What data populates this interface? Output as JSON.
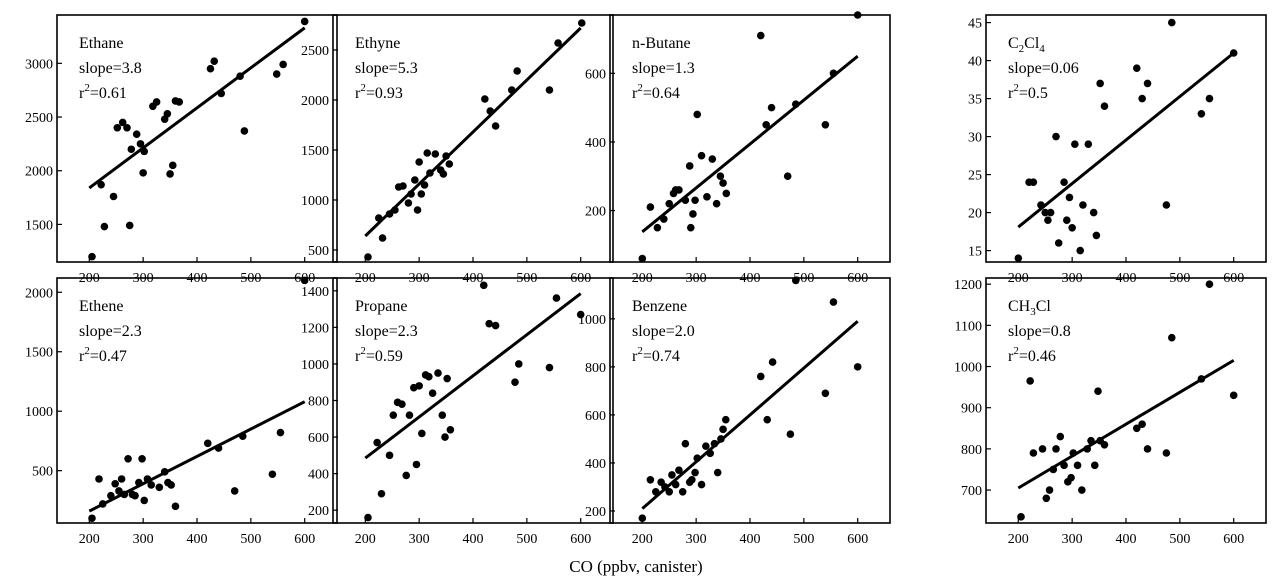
{
  "figure": {
    "xlabel": "CO (ppbv, canister)"
  },
  "chart_data": [
    {
      "type": "scatter",
      "species_main": "Ethane",
      "species_sub": "",
      "slope_label": "slope=3.8",
      "r2_label": "r",
      "r2_sup": "2",
      "r2_value": "=0.61",
      "xlim": [
        140,
        660
      ],
      "ylim": [
        1150,
        3450
      ],
      "xticks": [
        200,
        300,
        400,
        500,
        600
      ],
      "yticks": [
        1500,
        2000,
        2500,
        3000
      ],
      "fit": [
        [
          200,
          1840
        ],
        [
          600,
          3330
        ]
      ],
      "points": [
        [
          205,
          1200
        ],
        [
          222,
          1870
        ],
        [
          228,
          1480
        ],
        [
          245,
          1760
        ],
        [
          252,
          2400
        ],
        [
          262,
          2450
        ],
        [
          270,
          2400
        ],
        [
          275,
          1490
        ],
        [
          278,
          2200
        ],
        [
          288,
          2340
        ],
        [
          295,
          2250
        ],
        [
          300,
          1980
        ],
        [
          302,
          2180
        ],
        [
          318,
          2600
        ],
        [
          325,
          2640
        ],
        [
          340,
          2480
        ],
        [
          345,
          2530
        ],
        [
          350,
          1970
        ],
        [
          355,
          2050
        ],
        [
          360,
          2650
        ],
        [
          367,
          2640
        ],
        [
          425,
          2950
        ],
        [
          432,
          3020
        ],
        [
          445,
          2720
        ],
        [
          480,
          2880
        ],
        [
          488,
          2370
        ],
        [
          548,
          2900
        ],
        [
          560,
          2990
        ],
        [
          600,
          3390
        ]
      ]
    },
    {
      "type": "scatter",
      "species_main": "Ethyne",
      "species_sub": "",
      "slope_label": "slope=5.3",
      "r2_label": "r",
      "r2_sup": "2",
      "r2_value": "=0.93",
      "xlim": [
        140,
        660
      ],
      "ylim": [
        380,
        2850
      ],
      "xticks": [
        200,
        300,
        400,
        500,
        600
      ],
      "yticks": [
        500,
        1000,
        1500,
        2000,
        2500
      ],
      "fit": [
        [
          200,
          640
        ],
        [
          600,
          2720
        ]
      ],
      "points": [
        [
          205,
          430
        ],
        [
          225,
          820
        ],
        [
          232,
          620
        ],
        [
          245,
          860
        ],
        [
          255,
          900
        ],
        [
          262,
          1130
        ],
        [
          270,
          1140
        ],
        [
          280,
          970
        ],
        [
          285,
          1060
        ],
        [
          292,
          1200
        ],
        [
          297,
          900
        ],
        [
          300,
          1380
        ],
        [
          304,
          1060
        ],
        [
          310,
          1150
        ],
        [
          315,
          1470
        ],
        [
          320,
          1270
        ],
        [
          330,
          1460
        ],
        [
          340,
          1300
        ],
        [
          345,
          1260
        ],
        [
          350,
          1440
        ],
        [
          356,
          1360
        ],
        [
          422,
          2010
        ],
        [
          432,
          1890
        ],
        [
          442,
          1740
        ],
        [
          472,
          2100
        ],
        [
          482,
          2290
        ],
        [
          542,
          2100
        ],
        [
          558,
          2570
        ],
        [
          602,
          2770
        ]
      ]
    },
    {
      "type": "scatter",
      "species_main": "n-Butane",
      "species_sub": "",
      "slope_label": "slope=1.3",
      "r2_label": "r",
      "r2_sup": "2",
      "r2_value": "=0.64",
      "xlim": [
        140,
        660
      ],
      "ylim": [
        50,
        770
      ],
      "xticks": [
        200,
        300,
        400,
        500,
        600
      ],
      "yticks": [
        200,
        400,
        600
      ],
      "fit": [
        [
          200,
          138
        ],
        [
          600,
          650
        ]
      ],
      "points": [
        [
          200,
          60
        ],
        [
          215,
          210
        ],
        [
          228,
          150
        ],
        [
          240,
          175
        ],
        [
          250,
          220
        ],
        [
          258,
          250
        ],
        [
          262,
          260
        ],
        [
          268,
          260
        ],
        [
          280,
          230
        ],
        [
          288,
          330
        ],
        [
          290,
          150
        ],
        [
          294,
          190
        ],
        [
          298,
          230
        ],
        [
          302,
          480
        ],
        [
          310,
          360
        ],
        [
          320,
          240
        ],
        [
          330,
          350
        ],
        [
          338,
          220
        ],
        [
          345,
          300
        ],
        [
          350,
          280
        ],
        [
          356,
          250
        ],
        [
          420,
          710
        ],
        [
          430,
          450
        ],
        [
          440,
          500
        ],
        [
          470,
          300
        ],
        [
          485,
          510
        ],
        [
          540,
          450
        ],
        [
          555,
          600
        ],
        [
          600,
          770
        ]
      ]
    },
    {
      "type": "scatter",
      "species_main": "C",
      "species_sub": "2",
      "species_main2": "Cl",
      "species_sub2": "4",
      "slope_label": "slope=0.06",
      "r2_label": "r",
      "r2_sup": "2",
      "r2_value": "=0.5",
      "xlim": [
        140,
        660
      ],
      "ylim": [
        13.5,
        46
      ],
      "xticks": [
        200,
        300,
        400,
        500,
        600
      ],
      "yticks": [
        15,
        20,
        25,
        30,
        35,
        40,
        45
      ],
      "fit": [
        [
          200,
          18.1
        ],
        [
          600,
          41
        ]
      ],
      "points": [
        [
          200,
          14
        ],
        [
          220,
          24
        ],
        [
          228,
          24
        ],
        [
          242,
          21
        ],
        [
          250,
          20
        ],
        [
          255,
          19
        ],
        [
          260,
          20
        ],
        [
          270,
          30
        ],
        [
          275,
          16
        ],
        [
          285,
          24
        ],
        [
          290,
          19
        ],
        [
          295,
          22
        ],
        [
          300,
          18
        ],
        [
          305,
          29
        ],
        [
          315,
          15
        ],
        [
          320,
          21
        ],
        [
          330,
          29
        ],
        [
          340,
          20
        ],
        [
          345,
          17
        ],
        [
          352,
          37
        ],
        [
          360,
          34
        ],
        [
          420,
          39
        ],
        [
          430,
          35
        ],
        [
          440,
          37
        ],
        [
          475,
          21
        ],
        [
          485,
          45
        ],
        [
          540,
          33
        ],
        [
          555,
          35
        ],
        [
          600,
          41
        ]
      ]
    },
    {
      "type": "scatter",
      "species_main": "Ethene",
      "species_sub": "",
      "slope_label": "slope=2.3",
      "r2_label": "r",
      "r2_sup": "2",
      "r2_value": "=0.47",
      "xlim": [
        140,
        660
      ],
      "ylim": [
        60,
        2120
      ],
      "xticks": [
        200,
        300,
        400,
        500,
        600
      ],
      "yticks": [
        500,
        1000,
        1500,
        2000
      ],
      "fit": [
        [
          200,
          160
        ],
        [
          600,
          1080
        ]
      ],
      "points": [
        [
          205,
          100
        ],
        [
          218,
          430
        ],
        [
          225,
          220
        ],
        [
          240,
          290
        ],
        [
          248,
          390
        ],
        [
          255,
          330
        ],
        [
          260,
          430
        ],
        [
          265,
          300
        ],
        [
          272,
          600
        ],
        [
          280,
          300
        ],
        [
          285,
          290
        ],
        [
          292,
          400
        ],
        [
          298,
          600
        ],
        [
          302,
          250
        ],
        [
          308,
          430
        ],
        [
          315,
          380
        ],
        [
          330,
          360
        ],
        [
          340,
          490
        ],
        [
          346,
          400
        ],
        [
          352,
          380
        ],
        [
          360,
          200
        ],
        [
          420,
          730
        ],
        [
          440,
          690
        ],
        [
          470,
          330
        ],
        [
          485,
          790
        ],
        [
          540,
          470
        ],
        [
          555,
          820
        ],
        [
          600,
          2100
        ]
      ]
    },
    {
      "type": "scatter",
      "species_main": "Propane",
      "species_sub": "",
      "slope_label": "slope=2.3",
      "r2_label": "r",
      "r2_sup": "2",
      "r2_value": "=0.59",
      "xlim": [
        140,
        660
      ],
      "ylim": [
        130,
        1470
      ],
      "xticks": [
        200,
        300,
        400,
        500,
        600
      ],
      "yticks": [
        200,
        400,
        600,
        800,
        1000,
        1200,
        1400
      ],
      "fit": [
        [
          200,
          485
        ],
        [
          600,
          1385
        ]
      ],
      "points": [
        [
          205,
          160
        ],
        [
          222,
          570
        ],
        [
          230,
          290
        ],
        [
          245,
          500
        ],
        [
          252,
          720
        ],
        [
          260,
          790
        ],
        [
          268,
          780
        ],
        [
          276,
          390
        ],
        [
          282,
          720
        ],
        [
          290,
          870
        ],
        [
          295,
          450
        ],
        [
          300,
          880
        ],
        [
          305,
          620
        ],
        [
          312,
          940
        ],
        [
          318,
          930
        ],
        [
          325,
          840
        ],
        [
          335,
          950
        ],
        [
          343,
          720
        ],
        [
          348,
          600
        ],
        [
          352,
          920
        ],
        [
          358,
          640
        ],
        [
          420,
          1430
        ],
        [
          430,
          1220
        ],
        [
          442,
          1210
        ],
        [
          478,
          900
        ],
        [
          485,
          1000
        ],
        [
          542,
          980
        ],
        [
          555,
          1360
        ],
        [
          600,
          1270
        ]
      ]
    },
    {
      "type": "scatter",
      "species_main": "Benzene",
      "species_sub": "",
      "slope_label": "slope=2.0",
      "r2_label": "r",
      "r2_sup": "2",
      "r2_value": "=0.74",
      "xlim": [
        140,
        660
      ],
      "ylim": [
        150,
        1170
      ],
      "xticks": [
        200,
        300,
        400,
        500,
        600
      ],
      "yticks": [
        200,
        400,
        600,
        800,
        1000
      ],
      "fit": [
        [
          200,
          210
        ],
        [
          600,
          990
        ]
      ],
      "points": [
        [
          200,
          170
        ],
        [
          215,
          330
        ],
        [
          225,
          280
        ],
        [
          235,
          320
        ],
        [
          242,
          300
        ],
        [
          250,
          280
        ],
        [
          255,
          350
        ],
        [
          262,
          310
        ],
        [
          268,
          370
        ],
        [
          275,
          280
        ],
        [
          280,
          480
        ],
        [
          288,
          320
        ],
        [
          292,
          330
        ],
        [
          298,
          360
        ],
        [
          302,
          420
        ],
        [
          310,
          310
        ],
        [
          318,
          470
        ],
        [
          326,
          440
        ],
        [
          334,
          480
        ],
        [
          340,
          360
        ],
        [
          346,
          500
        ],
        [
          350,
          540
        ],
        [
          355,
          580
        ],
        [
          420,
          760
        ],
        [
          432,
          580
        ],
        [
          442,
          820
        ],
        [
          475,
          520
        ],
        [
          485,
          1160
        ],
        [
          540,
          690
        ],
        [
          555,
          1070
        ],
        [
          600,
          800
        ]
      ]
    },
    {
      "type": "scatter",
      "species_main": "CH",
      "species_sub": "3",
      "species_main2": "Cl",
      "species_sub2": "",
      "slope_label": "slope=0.8",
      "r2_label": "r",
      "r2_sup": "2",
      "r2_value": "=0.46",
      "xlim": [
        140,
        660
      ],
      "ylim": [
        620,
        1215
      ],
      "xticks": [
        200,
        300,
        400,
        500,
        600
      ],
      "yticks": [
        700,
        800,
        900,
        1000,
        1100,
        1200
      ],
      "fit": [
        [
          200,
          705
        ],
        [
          600,
          1015
        ]
      ],
      "points": [
        [
          205,
          635
        ],
        [
          222,
          965
        ],
        [
          228,
          790
        ],
        [
          245,
          800
        ],
        [
          252,
          680
        ],
        [
          258,
          700
        ],
        [
          265,
          750
        ],
        [
          270,
          800
        ],
        [
          278,
          830
        ],
        [
          285,
          760
        ],
        [
          292,
          720
        ],
        [
          298,
          730
        ],
        [
          302,
          790
        ],
        [
          310,
          760
        ],
        [
          318,
          700
        ],
        [
          328,
          800
        ],
        [
          335,
          820
        ],
        [
          342,
          760
        ],
        [
          348,
          940
        ],
        [
          352,
          820
        ],
        [
          360,
          810
        ],
        [
          420,
          850
        ],
        [
          430,
          860
        ],
        [
          440,
          800
        ],
        [
          475,
          790
        ],
        [
          485,
          1070
        ],
        [
          540,
          970
        ],
        [
          555,
          1200
        ],
        [
          600,
          930
        ]
      ]
    }
  ]
}
